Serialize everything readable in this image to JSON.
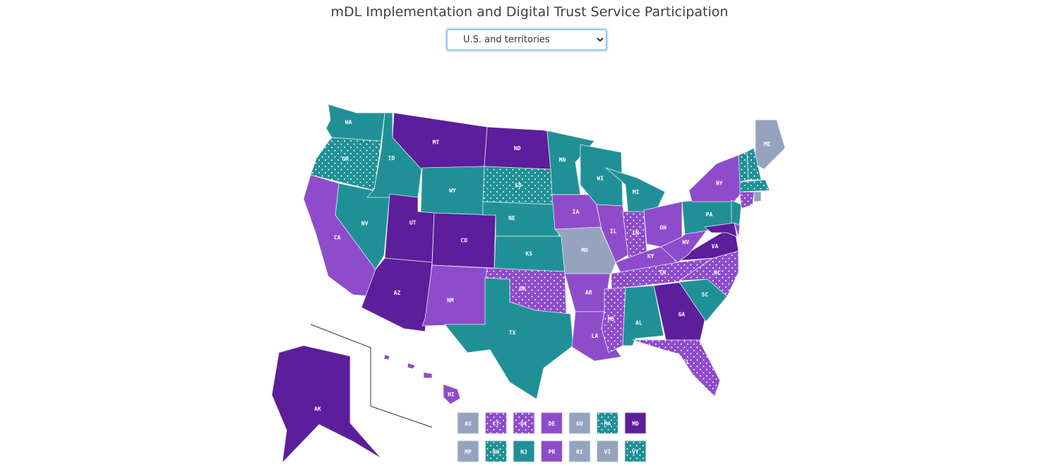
{
  "title": "mDL Implementation and Digital Trust Service Participation",
  "region_select": {
    "selected": "U.S. and territories",
    "options": [
      "U.S. and territories"
    ]
  },
  "colors": {
    "gray": "#95a3bf",
    "teal": "#1f9196",
    "teal-dot": "#1f9196",
    "purple": "#8e4ccb",
    "purple-dot": "#8e4ccb",
    "dark": "#5c1e9a"
  },
  "states": [
    {
      "code": "WA",
      "category": "teal"
    },
    {
      "code": "OR",
      "category": "teal-dot"
    },
    {
      "code": "CA",
      "category": "purple"
    },
    {
      "code": "NV",
      "category": "teal"
    },
    {
      "code": "ID",
      "category": "teal"
    },
    {
      "code": "MT",
      "category": "dark"
    },
    {
      "code": "WY",
      "category": "teal"
    },
    {
      "code": "UT",
      "category": "dark"
    },
    {
      "code": "CO",
      "category": "dark"
    },
    {
      "code": "AZ",
      "category": "dark"
    },
    {
      "code": "NM",
      "category": "purple"
    },
    {
      "code": "ND",
      "category": "dark"
    },
    {
      "code": "SD",
      "category": "teal-dot"
    },
    {
      "code": "NE",
      "category": "teal"
    },
    {
      "code": "KS",
      "category": "teal"
    },
    {
      "code": "OK",
      "category": "purple-dot"
    },
    {
      "code": "TX",
      "category": "teal"
    },
    {
      "code": "MN",
      "category": "teal"
    },
    {
      "code": "IA",
      "category": "purple"
    },
    {
      "code": "MO",
      "category": "gray"
    },
    {
      "code": "AR",
      "category": "purple"
    },
    {
      "code": "LA",
      "category": "purple"
    },
    {
      "code": "WI",
      "category": "teal"
    },
    {
      "code": "IL",
      "category": "purple"
    },
    {
      "code": "MI",
      "category": "teal"
    },
    {
      "code": "IN",
      "category": "purple-dot"
    },
    {
      "code": "OH",
      "category": "purple"
    },
    {
      "code": "KY",
      "category": "purple"
    },
    {
      "code": "TN",
      "category": "purple-dot"
    },
    {
      "code": "MS",
      "category": "purple-dot"
    },
    {
      "code": "AL",
      "category": "teal"
    },
    {
      "code": "GA",
      "category": "dark"
    },
    {
      "code": "FL",
      "category": "purple-dot"
    },
    {
      "code": "SC",
      "category": "teal"
    },
    {
      "code": "NC",
      "category": "purple-dot"
    },
    {
      "code": "VA",
      "category": "dark"
    },
    {
      "code": "WV",
      "category": "purple"
    },
    {
      "code": "PA",
      "category": "teal"
    },
    {
      "code": "NY",
      "category": "purple"
    },
    {
      "code": "NJ",
      "category": "teal"
    },
    {
      "code": "ME",
      "category": "gray"
    },
    {
      "code": "VT",
      "category": "teal-dot"
    },
    {
      "code": "NH",
      "category": "teal-dot"
    },
    {
      "code": "MA",
      "category": "teal-dot"
    },
    {
      "code": "CT",
      "category": "purple-dot"
    },
    {
      "code": "RI",
      "category": "gray"
    },
    {
      "code": "DE",
      "category": "purple"
    },
    {
      "code": "MD",
      "category": "dark"
    },
    {
      "code": "AK",
      "category": "dark"
    },
    {
      "code": "HI",
      "category": "purple"
    }
  ],
  "small_area_boxes": [
    [
      {
        "code": "AS",
        "category": "gray"
      },
      {
        "code": "CT",
        "category": "purple-dot"
      },
      {
        "code": "DC",
        "category": "purple-dot"
      },
      {
        "code": "DE",
        "category": "purple"
      },
      {
        "code": "GU",
        "category": "gray"
      },
      {
        "code": "MA",
        "category": "teal-dot"
      },
      {
        "code": "MD",
        "category": "dark"
      }
    ],
    [
      {
        "code": "MP",
        "category": "gray"
      },
      {
        "code": "NH",
        "category": "teal-dot"
      },
      {
        "code": "NJ",
        "category": "teal"
      },
      {
        "code": "PR",
        "category": "purple"
      },
      {
        "code": "RI",
        "category": "gray"
      },
      {
        "code": "VI",
        "category": "gray"
      },
      {
        "code": "VT",
        "category": "teal-dot"
      }
    ]
  ]
}
